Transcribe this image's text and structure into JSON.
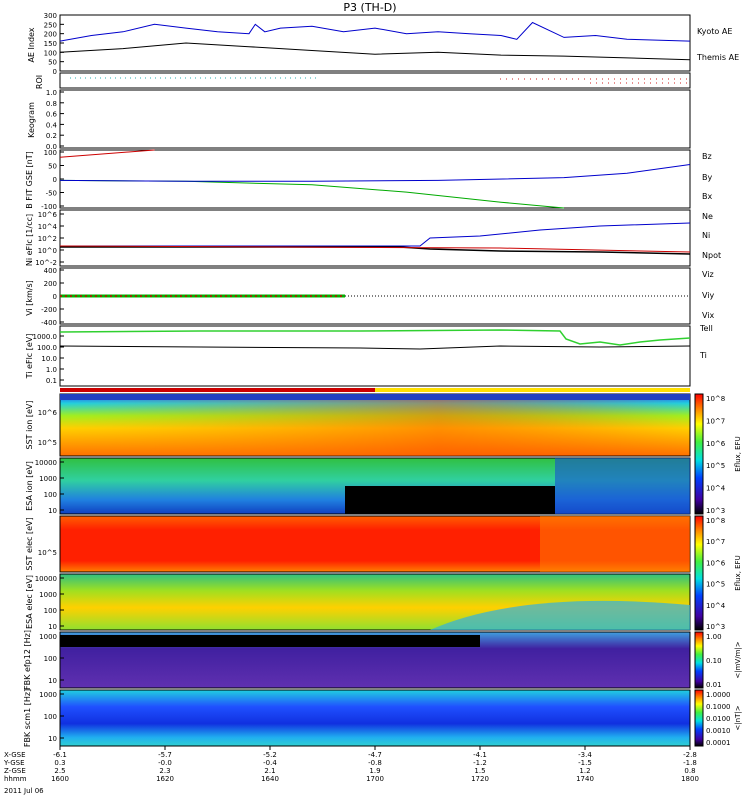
{
  "title": "P3 (TH-D)",
  "date": "2011 Jul 06",
  "colors": {
    "kyoto": "#0000cc",
    "themis": "#000000",
    "bz": "#cc0000",
    "by": "#00aa00",
    "bx": "#0000cc",
    "ne": "#cc0000",
    "ni": "#000000",
    "npot": "#0000cc"
  },
  "chart_data": [
    {
      "type": "line",
      "panel": "ae",
      "ylabel": "AE Index",
      "yticks": [
        "300",
        "250",
        "200",
        "150",
        "100",
        "50",
        "0"
      ],
      "ylim": [
        0,
        300
      ],
      "series": [
        {
          "name": "Kyoto AE",
          "x": [
            0,
            10,
            20,
            30,
            40,
            50,
            60,
            62,
            65,
            70,
            80,
            90,
            100,
            110,
            120,
            130,
            140,
            145,
            150,
            160,
            170,
            180,
            200
          ],
          "values": [
            160,
            190,
            210,
            250,
            230,
            210,
            200,
            250,
            210,
            230,
            240,
            210,
            230,
            200,
            210,
            200,
            190,
            170,
            260,
            180,
            190,
            170,
            160
          ]
        },
        {
          "name": "Themis AE",
          "x": [
            0,
            20,
            40,
            60,
            80,
            100,
            120,
            140,
            160,
            180,
            200
          ],
          "values": [
            100,
            120,
            150,
            130,
            110,
            90,
            100,
            85,
            80,
            70,
            60
          ]
        }
      ]
    },
    {
      "type": "line",
      "panel": "bfield",
      "ylabel": "B FIT GSE [nT]",
      "yticks": [
        "100",
        "50",
        "0",
        "-50",
        "-100"
      ],
      "ylim": [
        -100,
        100
      ],
      "series": [
        {
          "name": "Bz",
          "x": [
            0,
            30
          ],
          "values": [
            75,
            100
          ]
        },
        {
          "name": "By",
          "x": [
            0,
            40,
            80,
            110,
            140,
            160
          ],
          "values": [
            -5,
            -8,
            -20,
            -45,
            -80,
            -100
          ]
        },
        {
          "name": "Bx",
          "x": [
            0,
            40,
            80,
            120,
            160,
            180,
            200
          ],
          "values": [
            -5,
            -8,
            -8,
            -5,
            5,
            20,
            50
          ]
        }
      ]
    },
    {
      "type": "line",
      "panel": "density",
      "ylabel": "Ni eFlc [1/cc]",
      "yticks": [
        "10^6",
        "10^4",
        "10^2",
        "10^0",
        "10^-2"
      ],
      "series": [
        {
          "name": "Ne",
          "x": [
            0,
            100,
            200
          ],
          "values": [
            0.2,
            0.1,
            0.05
          ]
        },
        {
          "name": "Ni",
          "x": [
            0,
            100,
            120,
            160,
            200
          ],
          "values": [
            0.1,
            2,
            10,
            30,
            60
          ]
        },
        {
          "name": "Npot",
          "x": [
            0,
            100,
            200
          ],
          "values": [
            0.2,
            0.1,
            0.02
          ]
        }
      ]
    },
    {
      "type": "line",
      "panel": "velocity",
      "ylabel": "Vi [km/s]",
      "yticks": [
        "400",
        "200",
        "0",
        "-200",
        "-400"
      ],
      "ylim": [
        -400,
        400
      ],
      "series": [
        {
          "name": "Viz",
          "x": [
            0,
            90
          ],
          "values": [
            0,
            0
          ]
        },
        {
          "name": "Viy",
          "x": [
            0,
            90
          ],
          "values": [
            0,
            0
          ]
        },
        {
          "name": "Vix",
          "x": [
            0,
            90
          ],
          "values": [
            0,
            0
          ]
        }
      ]
    },
    {
      "type": "line",
      "panel": "temperature",
      "ylabel": "Ti eFlc [eV]",
      "yticks": [
        "1000.0",
        "100.0",
        "10.0",
        "1.0",
        "0.1"
      ],
      "series": [
        {
          "name": "Tell",
          "x": [
            0,
            100,
            160,
            200
          ],
          "values": [
            80,
            100,
            90,
            100
          ]
        },
        {
          "name": "Ti",
          "x": [
            0,
            120,
            160,
            180,
            200
          ],
          "values": [
            2000,
            3000,
            300,
            500,
            400
          ]
        }
      ]
    }
  ],
  "panels": {
    "roi": "ROI",
    "keogram": "Keogram",
    "keogram_ticks": [
      "1.0",
      "0.8",
      "0.6",
      "0.4",
      "0.2",
      "0.0"
    ],
    "sst_i": "SST ion [eV]",
    "esa_i": "ESA ion [eV]",
    "sst_e": "SST elec [eV]",
    "esa_e": "ESA elec [eV]",
    "fbk_e": "FBK efp12 [Hz]",
    "fbk_b": "FBK scm1 [Hz]",
    "esa_ticks": [
      "10000",
      "1000",
      "100",
      "10"
    ],
    "fbk_ticks": [
      "1000",
      "100",
      "10"
    ],
    "sst_ticks": [
      "10^6",
      "10^5"
    ]
  },
  "colorbars": {
    "eflux": [
      "10^8",
      "10^7",
      "10^6",
      "10^5",
      "10^4",
      "10^3"
    ],
    "eflux_label": "Eflux, EFU",
    "fbk_e": [
      "1.00",
      "0.10",
      "0.01"
    ],
    "fbk_e_label": "<|mV/m|>",
    "fbk_b": [
      "1.0000",
      "0.1000",
      "0.0100",
      "0.0010",
      "0.0001"
    ],
    "fbk_b_label": "<|nT|>"
  },
  "xaxis": {
    "rows": [
      {
        "label": "X-GSE",
        "vals": [
          "-6.1",
          "-5.7",
          "-5.2",
          "-4.7",
          "-4.1",
          "-3.4",
          "-2.8"
        ]
      },
      {
        "label": "Y-GSE",
        "vals": [
          "0.3",
          "-0.0",
          "-0.4",
          "-0.8",
          "-1.2",
          "-1.5",
          "-1.8"
        ]
      },
      {
        "label": "Z-GSE",
        "vals": [
          "2.5",
          "2.3",
          "2.1",
          "1.9",
          "1.5",
          "1.2",
          "0.8"
        ]
      },
      {
        "label": "hhmm",
        "vals": [
          "1600",
          "1620",
          "1640",
          "1700",
          "1720",
          "1740",
          "1800"
        ]
      }
    ]
  }
}
